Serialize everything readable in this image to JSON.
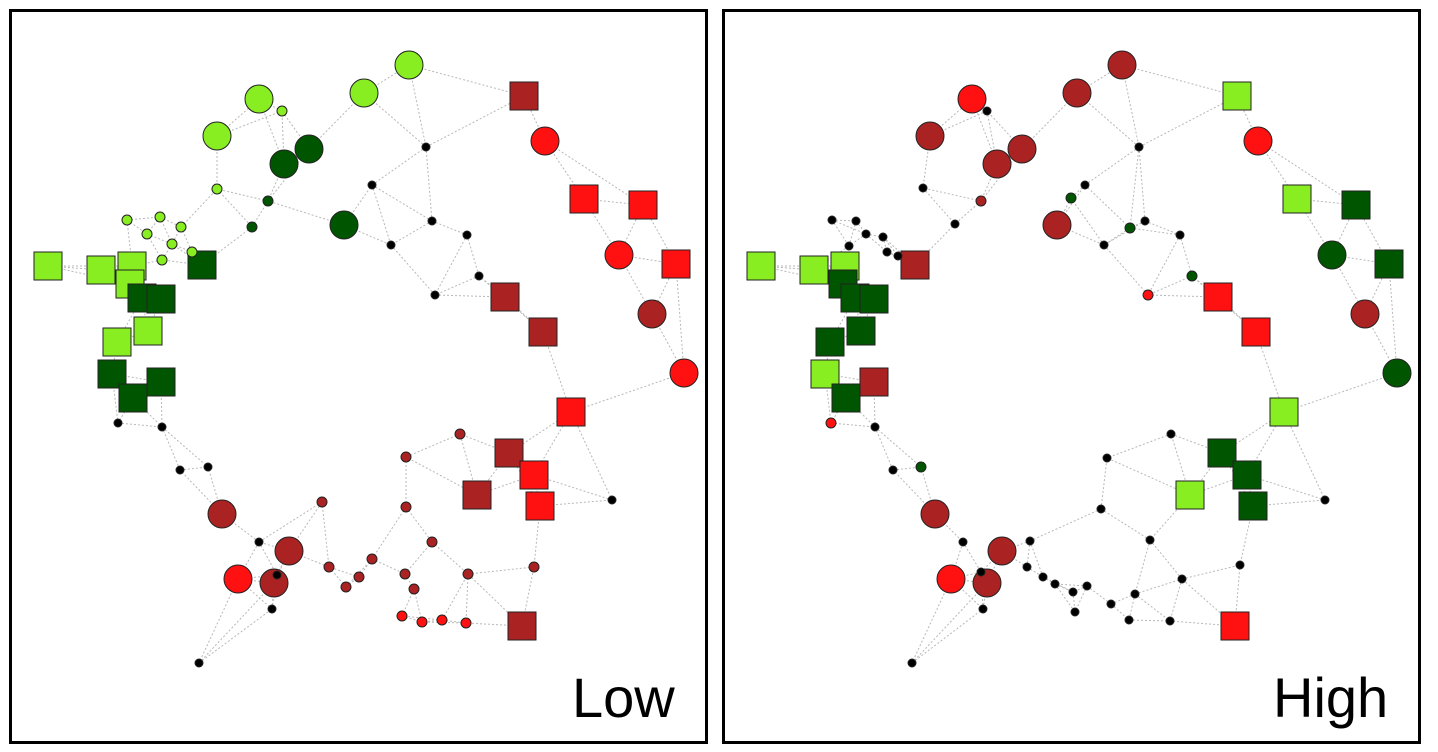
{
  "colors": {
    "dark_green": "#005500",
    "light_green": "#88ee22",
    "dark_red": "#aa2222",
    "red": "#ff1111",
    "black": "#000000",
    "edge": "#b8b8b8"
  },
  "panels": [
    {
      "id": "low",
      "label": "Low"
    },
    {
      "id": "high",
      "label": "High"
    }
  ],
  "node_shapes": [
    "circle-large",
    "circle-small",
    "square"
  ],
  "node_colors_low": [
    "light_green",
    "light_green",
    "light_green",
    "light_green",
    "light_green",
    "light_green",
    "dark_green",
    "dark_green",
    "dark_green",
    "dark_green",
    "dark_green",
    "dark_green",
    "dark_green",
    "dark_green",
    "dark_green",
    "dark_green",
    "light_green",
    "light_green",
    "light_green",
    "light_green",
    "dark_red",
    "red",
    "red",
    "red",
    "red",
    "red",
    "dark_red",
    "red",
    "dark_red",
    "dark_red",
    "red",
    "dark_red",
    "red",
    "dark_red",
    "red",
    "dark_red",
    "dark_red",
    "red",
    "dark_red",
    "dark_red",
    "black",
    "black",
    "black",
    "black",
    "black",
    "black",
    "black",
    "black",
    "black",
    "black",
    "black",
    "black",
    "black"
  ],
  "node_colors_high": [
    "light_green",
    "light_green",
    "light_green",
    "dark_green",
    "dark_green",
    "dark_green",
    "dark_green",
    "dark_green",
    "light_green",
    "dark_green",
    "dark_red",
    "dark_red",
    "dark_red",
    "dark_red",
    "dark_red",
    "dark_red",
    "dark_red",
    "red",
    "dark_red",
    "dark_red",
    "light_green",
    "red",
    "light_green",
    "dark_green",
    "dark_green",
    "dark_green",
    "dark_red",
    "dark_green",
    "red",
    "red",
    "light_green",
    "dark_green",
    "dark_green",
    "light_green",
    "dark_green",
    "red",
    "dark_red",
    "red",
    "dark_red",
    "dark_red",
    "black",
    "black",
    "black",
    "black",
    "black",
    "dark_green",
    "red",
    "red",
    "black",
    "black",
    "dark_green",
    "black",
    "black"
  ]
}
